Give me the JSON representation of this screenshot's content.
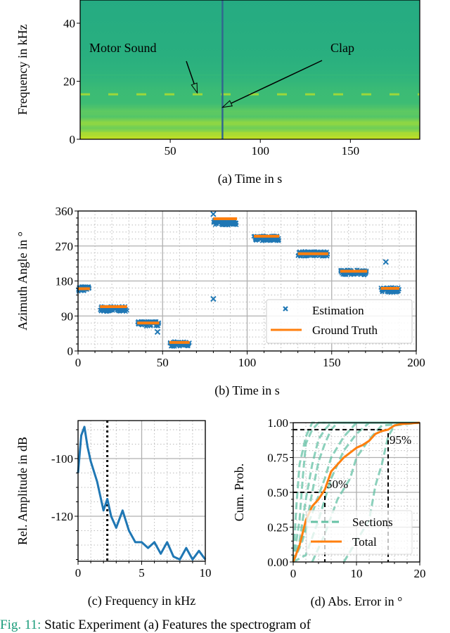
{
  "chart_data": [
    {
      "type": "heatmap",
      "panel": "a",
      "xlabel": "(a) Time in s",
      "ylabel": "Frequency in kHz",
      "xlim": [
        0,
        188
      ],
      "ylim": [
        0,
        48
      ],
      "xticks": [
        50,
        100,
        150
      ],
      "yticks": [
        0,
        20,
        40
      ],
      "clap_time": 79,
      "motor_band_khz": 15.5,
      "annotations": [
        {
          "text": "Motor Sound",
          "target": [
            65,
            16
          ]
        },
        {
          "text": "Clap",
          "target": [
            79,
            11
          ]
        }
      ],
      "colors": {
        "low_freq": "#b5de2b",
        "mid": "#35b779",
        "high": "#22a884",
        "clap_line": "#31688e"
      }
    },
    {
      "type": "scatter",
      "panel": "b",
      "xlabel": "(b) Time in s",
      "ylabel": "Azimuth Angle in °",
      "xlim": [
        0,
        200
      ],
      "ylim": [
        0,
        360
      ],
      "xticks": [
        0,
        50,
        100,
        150,
        200
      ],
      "yticks": [
        0,
        90,
        180,
        270,
        360
      ],
      "grid": true,
      "legend_position": "bottom-right",
      "series": [
        {
          "name": "Estimation",
          "color": "#1f77b4",
          "segments": [
            {
              "t": [
                0,
                7
              ],
              "angle": 160
            },
            {
              "t": [
                13,
                29
              ],
              "angle": 108
            },
            {
              "t": [
                35,
                48
              ],
              "angle": 70
            },
            {
              "t": [
                54,
                66
              ],
              "angle": 18
            },
            {
              "t": [
                80,
                94
              ],
              "angle": 330
            },
            {
              "t": [
                104,
                119
              ],
              "angle": 290
            },
            {
              "t": [
                130,
                148
              ],
              "angle": 250
            },
            {
              "t": [
                155,
                171
              ],
              "angle": 202
            },
            {
              "t": [
                179,
                190
              ],
              "angle": 157
            }
          ],
          "outliers": [
            [
              80,
              352
            ],
            [
              80,
              134
            ],
            [
              47,
              49
            ],
            [
              182,
              229
            ]
          ]
        },
        {
          "name": "Ground Truth",
          "color": "#ff7f0e",
          "segments": [
            {
              "t": [
                0,
                7
              ],
              "angle": 160
            },
            {
              "t": [
                13,
                29
              ],
              "angle": 114
            },
            {
              "t": [
                35,
                48
              ],
              "angle": 72
            },
            {
              "t": [
                54,
                66
              ],
              "angle": 22
            },
            {
              "t": [
                80,
                94
              ],
              "angle": 340
            },
            {
              "t": [
                104,
                119
              ],
              "angle": 295
            },
            {
              "t": [
                130,
                148
              ],
              "angle": 250
            },
            {
              "t": [
                155,
                171
              ],
              "angle": 205
            },
            {
              "t": [
                179,
                190
              ],
              "angle": 161
            }
          ]
        }
      ]
    },
    {
      "type": "line",
      "panel": "c",
      "xlabel": "(c) Frequency in kHz",
      "ylabel": "Rel. Amplitude in dB",
      "xlim": [
        0,
        10
      ],
      "ylim": [
        -136,
        -87
      ],
      "xticks": [
        0,
        5,
        10
      ],
      "yticks": [
        -100,
        -120
      ],
      "grid": true,
      "marker_line_khz": 2.3,
      "series": [
        {
          "color": "#1f77b4",
          "x": [
            0,
            0.25,
            0.5,
            0.75,
            1,
            1.5,
            2,
            2.3,
            2.6,
            3,
            3.5,
            4,
            4.5,
            5,
            5.5,
            6,
            6.5,
            7,
            7.5,
            8,
            8.5,
            9,
            9.5,
            10
          ],
          "y": [
            -105,
            -92,
            -89,
            -96,
            -101,
            -108,
            -118,
            -114,
            -120,
            -124,
            -118,
            -125,
            -129,
            -129,
            -131,
            -129,
            -133,
            -129,
            -134,
            -135,
            -131,
            -135,
            -132,
            -135
          ]
        }
      ]
    },
    {
      "type": "line",
      "panel": "d",
      "xlabel": "(d) Abs. Error in °",
      "ylabel": "Cum. Prob.",
      "xlim": [
        0,
        20
      ],
      "ylim": [
        0,
        1
      ],
      "xticks": [
        0,
        10,
        20
      ],
      "yticks": [
        0.0,
        0.25,
        0.5,
        0.75,
        1.0
      ],
      "ytick_labels": [
        "0.00",
        "0.25",
        "0.50",
        "0.75",
        "1.00"
      ],
      "grid": true,
      "legend_position": "bottom-center",
      "annotations": [
        {
          "text": "50%",
          "x": 5,
          "y": 0.5
        },
        {
          "text": "95%",
          "x": 15,
          "y": 0.95
        }
      ],
      "series": [
        {
          "name": "Sections",
          "color": "#66c2a5",
          "style": "dashed",
          "curves": [
            {
              "x": [
                0,
                1,
                1.5,
                2,
                3,
                4,
                20
              ],
              "y": [
                0,
                0.3,
                0.6,
                0.85,
                0.95,
                1,
                1
              ]
            },
            {
              "x": [
                0,
                1,
                2,
                3,
                4,
                5,
                6,
                20
              ],
              "y": [
                0,
                0.15,
                0.45,
                0.7,
                0.88,
                0.95,
                1,
                1
              ]
            },
            {
              "x": [
                0,
                2,
                3,
                4,
                5,
                6,
                7,
                20
              ],
              "y": [
                0,
                0.25,
                0.5,
                0.72,
                0.85,
                0.95,
                1,
                1
              ]
            },
            {
              "x": [
                0,
                1,
                3,
                5,
                6,
                8,
                10,
                20
              ],
              "y": [
                0,
                0.1,
                0.35,
                0.6,
                0.75,
                0.9,
                1,
                1
              ]
            },
            {
              "x": [
                0,
                2,
                4,
                6,
                8,
                10,
                12,
                20
              ],
              "y": [
                0,
                0.05,
                0.3,
                0.6,
                0.8,
                0.92,
                1,
                1
              ]
            },
            {
              "x": [
                3,
                5,
                7,
                9,
                10,
                12,
                14,
                20
              ],
              "y": [
                0,
                0.2,
                0.45,
                0.6,
                0.75,
                0.88,
                0.98,
                1
              ]
            },
            {
              "x": [
                8,
                10,
                12,
                13,
                14,
                15,
                16,
                20
              ],
              "y": [
                0,
                0.15,
                0.3,
                0.55,
                0.7,
                0.9,
                0.98,
                1
              ]
            },
            {
              "x": [
                0,
                0.5,
                1,
                2,
                3,
                20
              ],
              "y": [
                0,
                0.4,
                0.7,
                0.9,
                1,
                1
              ]
            }
          ]
        },
        {
          "name": "Total",
          "color": "#ff7f0e",
          "style": "solid",
          "x": [
            0,
            1,
            2,
            3,
            4,
            5,
            6,
            7,
            8,
            10,
            11,
            12,
            13,
            14,
            15,
            16,
            17,
            20
          ],
          "y": [
            0,
            0.12,
            0.3,
            0.4,
            0.45,
            0.52,
            0.65,
            0.7,
            0.75,
            0.82,
            0.84,
            0.87,
            0.92,
            0.94,
            0.95,
            0.98,
            0.99,
            1
          ]
        }
      ]
    }
  ],
  "caption": {
    "label": "Fig. 11:",
    "text": "Static Experiment (a) Features the spectrogram of"
  }
}
